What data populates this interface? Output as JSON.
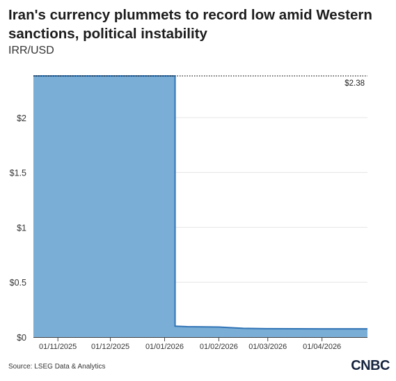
{
  "header": {
    "title": "Iran's currency plummets to record low amid Western sanctions, political instability",
    "subtitle": "IRR/USD"
  },
  "footer": {
    "source": "Source: LSEG Data & Analytics",
    "logo_text": "CNBC"
  },
  "colors": {
    "area_fill": "#7aaed6",
    "area_line": "#2f73b5",
    "grid": "#e5e5e5",
    "axis": "#444444"
  },
  "chart_data": {
    "type": "area",
    "title": "Iran's currency plummets to record low amid Western sanctions, political instability",
    "ylabel": "IRR/USD",
    "xlabel": "",
    "x_range": [
      "2025-10-18",
      "2026-04-27"
    ],
    "ylim": [
      0,
      2.38
    ],
    "grid": true,
    "y_ticks": [
      {
        "value": 0,
        "label": "$0"
      },
      {
        "value": 0.5,
        "label": "$0.5"
      },
      {
        "value": 1,
        "label": "$1"
      },
      {
        "value": 1.5,
        "label": "$1.5"
      },
      {
        "value": 2,
        "label": "$2"
      }
    ],
    "x_ticks": [
      {
        "date": "2025-11-01",
        "label": "01/11/2025"
      },
      {
        "date": "2025-12-01",
        "label": "01/12/2025"
      },
      {
        "date": "2026-01-01",
        "label": "01/01/2026"
      },
      {
        "date": "2026-02-01",
        "label": "01/02/2026"
      },
      {
        "date": "2026-03-01",
        "label": "01/03/2026"
      },
      {
        "date": "2026-04-01",
        "label": "01/04/2026"
      }
    ],
    "series": [
      {
        "points": [
          {
            "x": "2025-10-18",
            "y": 2.38
          },
          {
            "x": "2026-01-07",
            "y": 2.38
          },
          {
            "x": "2026-01-07",
            "y": 0.1
          },
          {
            "x": "2026-01-14",
            "y": 0.095
          },
          {
            "x": "2026-02-01",
            "y": 0.092
          },
          {
            "x": "2026-02-15",
            "y": 0.08
          },
          {
            "x": "2026-03-01",
            "y": 0.077
          },
          {
            "x": "2026-04-01",
            "y": 0.075
          },
          {
            "x": "2026-04-27",
            "y": 0.075
          }
        ]
      }
    ],
    "annotations": [
      {
        "label": "$2.38",
        "value": 2.38
      }
    ]
  }
}
